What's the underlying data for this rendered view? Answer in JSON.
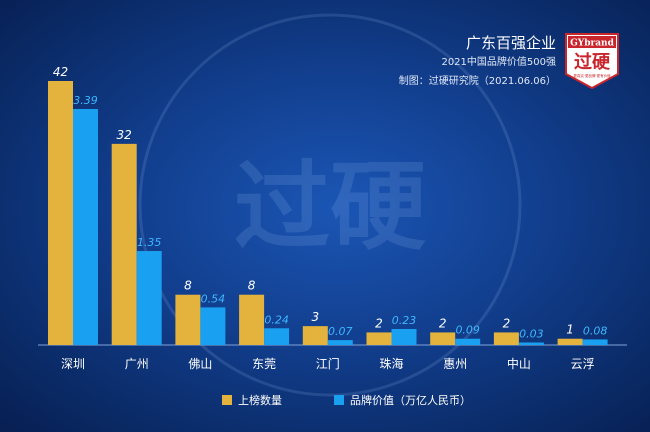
{
  "header": {
    "title": "广东百强企业",
    "subtitle": "2021中国品牌价值500强",
    "source": "制图：过硬研究院（2021.06.06）"
  },
  "logo": {
    "brand_text": "GYbrand",
    "main_text": "过硬",
    "tagline": "更真实·更品牌·更有价值",
    "watermark_text": "过硬"
  },
  "colors": {
    "count_bar": "#e3b33d",
    "value_bar": "#1aa0f0",
    "count_label": "#ffffff",
    "value_label": "#3db7ff",
    "axis": "#7fa4d8",
    "background": "#123f8f",
    "logo_red": "#c8262c"
  },
  "chart_data": {
    "type": "bar",
    "categories": [
      "深圳",
      "广州",
      "佛山",
      "东莞",
      "江门",
      "珠海",
      "惠州",
      "中山",
      "云浮"
    ],
    "series": [
      {
        "name": "上榜数量",
        "values": [
          42,
          32,
          8,
          8,
          3,
          2,
          2,
          2,
          1
        ],
        "labels": [
          "42",
          "32",
          "8",
          "8",
          "3",
          "2",
          "2",
          "2",
          "1"
        ]
      },
      {
        "name": "品牌价值（万亿人民币）",
        "values": [
          3.39,
          1.35,
          0.54,
          0.24,
          0.07,
          0.23,
          0.09,
          0.03,
          0.08
        ],
        "labels": [
          "3.39",
          "1.35",
          "0.54",
          "0.24",
          "0.07",
          "0.23",
          "0.09",
          "0.03",
          "0.08"
        ]
      }
    ],
    "legend_position": "bottom",
    "grid": false
  }
}
